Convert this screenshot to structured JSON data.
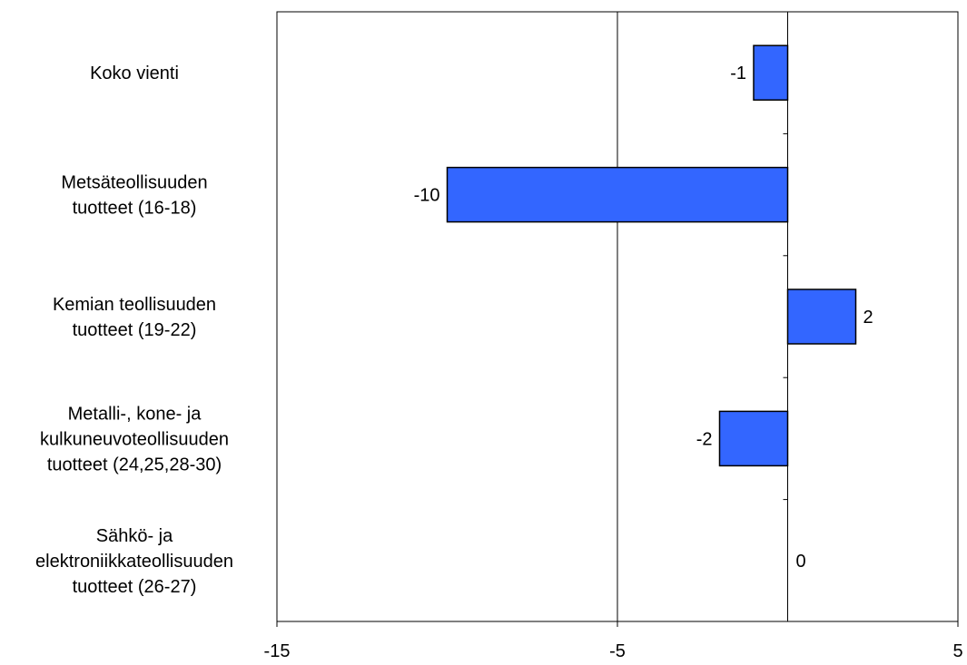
{
  "chart_data": {
    "type": "bar",
    "orientation": "horizontal",
    "categories": [
      [
        "Koko vienti"
      ],
      [
        "Metsäteollisuuden",
        "tuotteet (16-18)"
      ],
      [
        "Kemian teollisuuden",
        "tuotteet (19-22)"
      ],
      [
        "Metalli-, kone- ja",
        "kulkuneuvoteollisuuden",
        "tuotteet (24,25,28-30)"
      ],
      [
        "Sähkö- ja",
        "elektroniikkateollisuuden",
        "tuotteet (26-27)"
      ]
    ],
    "values": [
      -1,
      -10,
      2,
      -2,
      0
    ],
    "data_labels": [
      "-1",
      "-10",
      "2",
      "-2",
      "0"
    ],
    "xlim": [
      -15,
      5
    ],
    "x_ticks": [
      -15,
      -5,
      5
    ],
    "x_tick_labels": [
      "-15",
      "-5",
      "5"
    ],
    "gridlines_x": [
      -5,
      0
    ],
    "title": "",
    "xlabel": "",
    "ylabel": "",
    "legend": "none",
    "colors": {
      "bar_fill": "#3366ff",
      "bar_stroke": "#000000",
      "axis": "#000000",
      "grid": "#000000"
    }
  }
}
